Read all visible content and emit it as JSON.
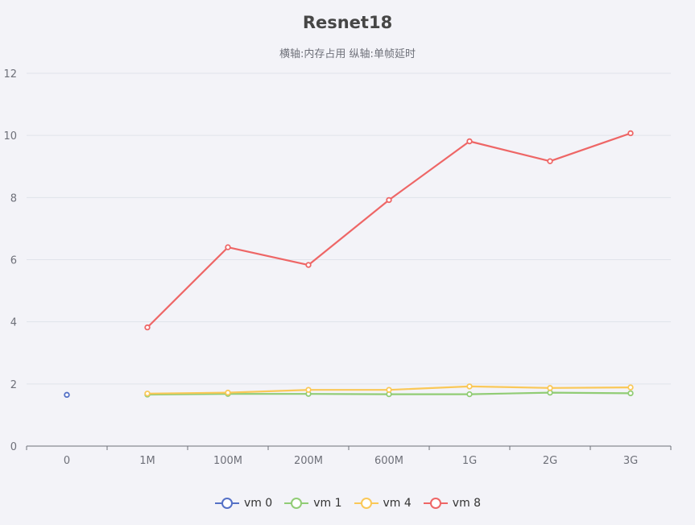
{
  "chart_data": {
    "type": "line",
    "title": "Resnet18",
    "subtitle": "横轴:内存占用   纵轴:单帧延时",
    "categories": [
      "0",
      "1M",
      "100M",
      "200M",
      "600M",
      "1G",
      "2G",
      "3G"
    ],
    "ylim": [
      0,
      12
    ],
    "yticks": [
      0,
      2,
      4,
      6,
      8,
      10,
      12
    ],
    "grid": true,
    "legend_position": "bottom-center",
    "series": [
      {
        "name": "vm 0",
        "color": "#5470c6",
        "values": [
          1.65,
          null,
          null,
          null,
          null,
          null,
          null,
          null
        ]
      },
      {
        "name": "vm 1",
        "color": "#91cc75",
        "values": [
          null,
          1.66,
          1.68,
          1.68,
          1.67,
          1.67,
          1.72,
          1.7
        ]
      },
      {
        "name": "vm 4",
        "color": "#fac858",
        "values": [
          null,
          1.69,
          1.72,
          1.81,
          1.81,
          1.92,
          1.87,
          1.89
        ]
      },
      {
        "name": "vm 8",
        "color": "#ee6666",
        "values": [
          null,
          3.82,
          6.4,
          5.83,
          7.92,
          9.81,
          9.17,
          10.07
        ]
      }
    ]
  }
}
